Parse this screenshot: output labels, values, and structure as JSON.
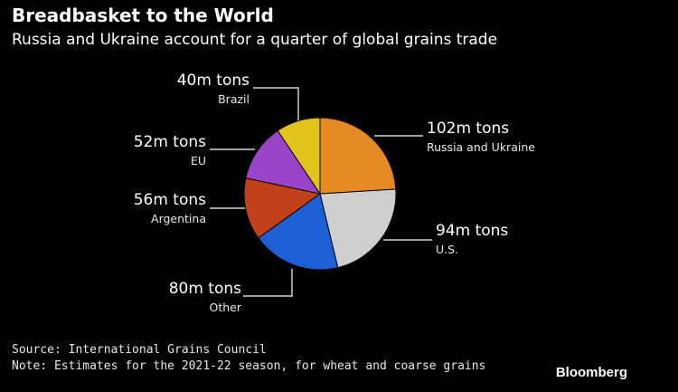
{
  "header": {
    "title": "Breadbasket to the World",
    "subtitle": "Russia and Ukraine account for a quarter of global grains trade"
  },
  "footer": {
    "source": "Source: International Grains Council",
    "note": "Note: Estimates for the 2021-22 season, for wheat and coarse grains",
    "brand": "Bloomberg"
  },
  "chart_data": {
    "type": "pie",
    "title": "Breadbasket to the World",
    "subtitle": "Russia and Ukraine account for a quarter of global grains trade",
    "unit": "m tons",
    "slices": [
      {
        "name": "Russia and Ukraine",
        "value": 102,
        "label": "102m tons",
        "color": "#e68a23"
      },
      {
        "name": "U.S.",
        "value": 94,
        "label": "94m tons",
        "color": "#cfcfcf"
      },
      {
        "name": "Other",
        "value": 80,
        "label": "80m tons",
        "color": "#1f5fd6"
      },
      {
        "name": "Argentina",
        "value": 56,
        "label": "56m tons",
        "color": "#c2401a"
      },
      {
        "name": "EU",
        "value": 52,
        "label": "52m tons",
        "color": "#9a45c9"
      },
      {
        "name": "Brazil",
        "value": 40,
        "label": "40m tons",
        "color": "#e3c219"
      }
    ]
  }
}
